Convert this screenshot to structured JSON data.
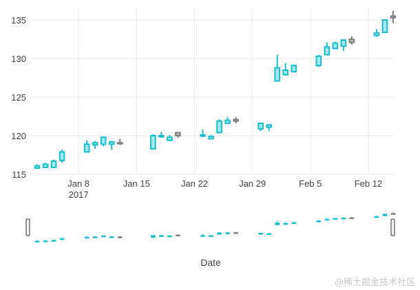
{
  "chart_data": {
    "type": "candlestick",
    "title": "",
    "xlabel": "Date",
    "ylabel": "",
    "ylim": [
      115,
      136.7
    ],
    "yticks": [
      115,
      120,
      125,
      130,
      135
    ],
    "x_range": [
      "2017-01-02",
      "2017-02-15"
    ],
    "xticks": [
      {
        "date": "2017-01-08",
        "label": "Jan 8",
        "sublabel": "2017"
      },
      {
        "date": "2017-01-15",
        "label": "Jan 15",
        "sublabel": ""
      },
      {
        "date": "2017-01-22",
        "label": "Jan 22",
        "sublabel": ""
      },
      {
        "date": "2017-01-29",
        "label": "Jan 29",
        "sublabel": ""
      },
      {
        "date": "2017-02-05",
        "label": "Feb 5",
        "sublabel": ""
      },
      {
        "date": "2017-02-12",
        "label": "Feb 12",
        "sublabel": ""
      }
    ],
    "increasing_color": "#17becf",
    "decreasing_color": "#7f7f7f",
    "series": [
      {
        "date": "2017-01-03",
        "open": 115.8,
        "high": 116.3,
        "low": 115.7,
        "close": 116.1
      },
      {
        "date": "2017-01-04",
        "open": 115.9,
        "high": 116.5,
        "low": 115.8,
        "close": 116.3
      },
      {
        "date": "2017-01-05",
        "open": 115.9,
        "high": 116.9,
        "low": 115.8,
        "close": 116.7
      },
      {
        "date": "2017-01-06",
        "open": 116.8,
        "high": 118.2,
        "low": 116.5,
        "close": 117.9
      },
      {
        "date": "2017-01-09",
        "open": 117.9,
        "high": 119.4,
        "low": 117.9,
        "close": 118.9
      },
      {
        "date": "2017-01-10",
        "open": 118.8,
        "high": 119.3,
        "low": 118.3,
        "close": 119.1
      },
      {
        "date": "2017-01-11",
        "open": 118.9,
        "high": 119.9,
        "low": 118.6,
        "close": 119.8
      },
      {
        "date": "2017-01-12",
        "open": 118.9,
        "high": 119.3,
        "low": 118.2,
        "close": 119.2
      },
      {
        "date": "2017-01-13",
        "open": 119.1,
        "high": 119.6,
        "low": 118.8,
        "close": 119.0
      },
      {
        "date": "2017-01-17",
        "open": 118.3,
        "high": 120.2,
        "low": 118.2,
        "close": 120.0
      },
      {
        "date": "2017-01-18",
        "open": 120.0,
        "high": 120.5,
        "low": 119.7,
        "close": 120.0
      },
      {
        "date": "2017-01-19",
        "open": 119.4,
        "high": 120.1,
        "low": 119.3,
        "close": 119.8
      },
      {
        "date": "2017-01-20",
        "open": 120.4,
        "high": 120.5,
        "low": 119.7,
        "close": 120.0
      },
      {
        "date": "2017-01-23",
        "open": 120.0,
        "high": 120.8,
        "low": 119.8,
        "close": 120.1
      },
      {
        "date": "2017-01-24",
        "open": 119.6,
        "high": 120.1,
        "low": 119.5,
        "close": 119.9
      },
      {
        "date": "2017-01-25",
        "open": 120.4,
        "high": 122.1,
        "low": 120.3,
        "close": 121.9
      },
      {
        "date": "2017-01-26",
        "open": 121.6,
        "high": 122.4,
        "low": 121.6,
        "close": 122.0
      },
      {
        "date": "2017-01-27",
        "open": 122.1,
        "high": 122.4,
        "low": 121.6,
        "close": 121.9
      },
      {
        "date": "2017-01-30",
        "open": 120.9,
        "high": 121.6,
        "low": 120.6,
        "close": 121.6
      },
      {
        "date": "2017-01-31",
        "open": 121.1,
        "high": 121.4,
        "low": 120.6,
        "close": 121.4
      },
      {
        "date": "2017-02-01",
        "open": 127.1,
        "high": 130.5,
        "low": 127.0,
        "close": 128.8
      },
      {
        "date": "2017-02-02",
        "open": 127.9,
        "high": 129.4,
        "low": 127.8,
        "close": 128.5
      },
      {
        "date": "2017-02-03",
        "open": 128.3,
        "high": 129.2,
        "low": 128.2,
        "close": 129.1
      },
      {
        "date": "2017-02-06",
        "open": 129.1,
        "high": 130.5,
        "low": 128.9,
        "close": 130.3
      },
      {
        "date": "2017-02-07",
        "open": 130.5,
        "high": 132.1,
        "low": 130.4,
        "close": 131.5
      },
      {
        "date": "2017-02-08",
        "open": 131.3,
        "high": 132.2,
        "low": 131.2,
        "close": 132.0
      },
      {
        "date": "2017-02-09",
        "open": 131.6,
        "high": 132.4,
        "low": 131.0,
        "close": 132.4
      },
      {
        "date": "2017-02-10",
        "open": 132.5,
        "high": 132.9,
        "low": 131.8,
        "close": 132.1
      },
      {
        "date": "2017-02-13",
        "open": 133.0,
        "high": 133.8,
        "low": 132.8,
        "close": 133.3
      },
      {
        "date": "2017-02-14",
        "open": 133.4,
        "high": 135.1,
        "low": 133.3,
        "close": 135.0
      },
      {
        "date": "2017-02-15",
        "open": 135.5,
        "high": 136.2,
        "low": 134.6,
        "close": 135.3
      }
    ],
    "rangeslider": true
  },
  "watermark": "@稀土掘金技术社区"
}
